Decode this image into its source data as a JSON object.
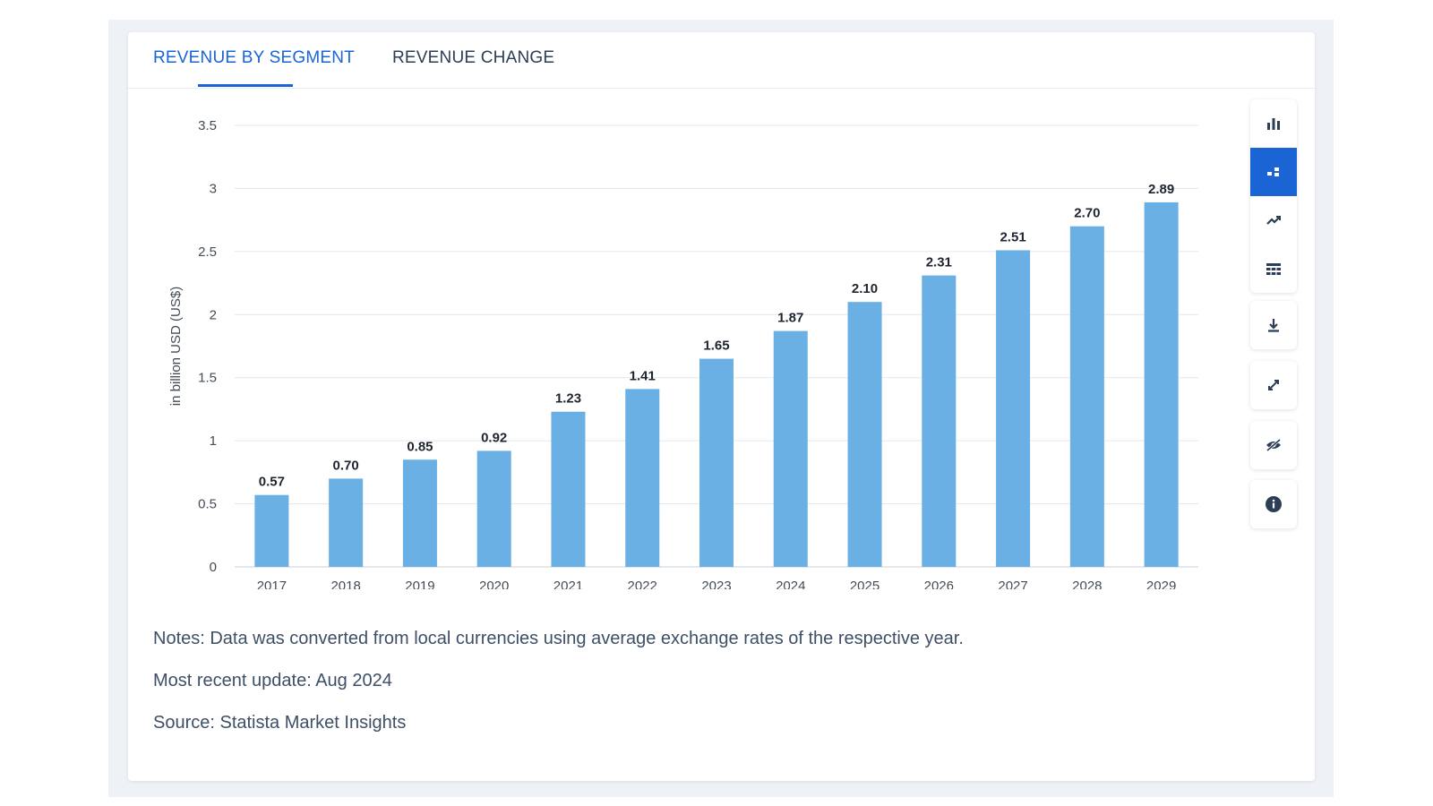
{
  "tabs": [
    {
      "label": "REVENUE BY SEGMENT",
      "active": true
    },
    {
      "label": "REVENUE CHANGE",
      "active": false
    }
  ],
  "toolbar": {
    "group1": [
      {
        "icon": "bar-chart-icon",
        "active": false
      },
      {
        "icon": "stacked-chart-icon",
        "active": true
      },
      {
        "icon": "trend-line-icon",
        "active": false
      },
      {
        "icon": "table-icon",
        "active": false
      }
    ],
    "download_icon": "download-icon",
    "expand_icon": "expand-icon",
    "hide_icon": "eye-off-icon",
    "info_icon": "info-icon"
  },
  "notes": {
    "note": "Notes: Data was converted from local currencies using average exchange rates of the respective year.",
    "update": "Most recent update: Aug 2024",
    "source": "Source: Statista Market Insights"
  },
  "colors": {
    "bar": "#6ab0e4",
    "accent": "#1a64d6"
  },
  "chart_data": {
    "type": "bar",
    "categories": [
      "2017",
      "2018",
      "2019",
      "2020",
      "2021",
      "2022",
      "2023",
      "2024",
      "2025",
      "2026",
      "2027",
      "2028",
      "2029"
    ],
    "values": [
      0.57,
      0.7,
      0.85,
      0.92,
      1.23,
      1.41,
      1.65,
      1.87,
      2.1,
      2.31,
      2.51,
      2.7,
      2.89
    ],
    "value_labels": [
      "0.57",
      "0.70",
      "0.85",
      "0.92",
      "1.23",
      "1.41",
      "1.65",
      "1.87",
      "2.10",
      "2.31",
      "2.51",
      "2.70",
      "2.89"
    ],
    "ylabel": "in billion USD (US$)",
    "ylim": [
      0,
      3.5
    ],
    "yticks": [
      0,
      0.5,
      1,
      1.5,
      2,
      2.5,
      3,
      3.5
    ],
    "ytick_labels": [
      "0",
      "0.5",
      "1",
      "1.5",
      "2",
      "2.5",
      "3",
      "3.5"
    ],
    "grid": true
  }
}
